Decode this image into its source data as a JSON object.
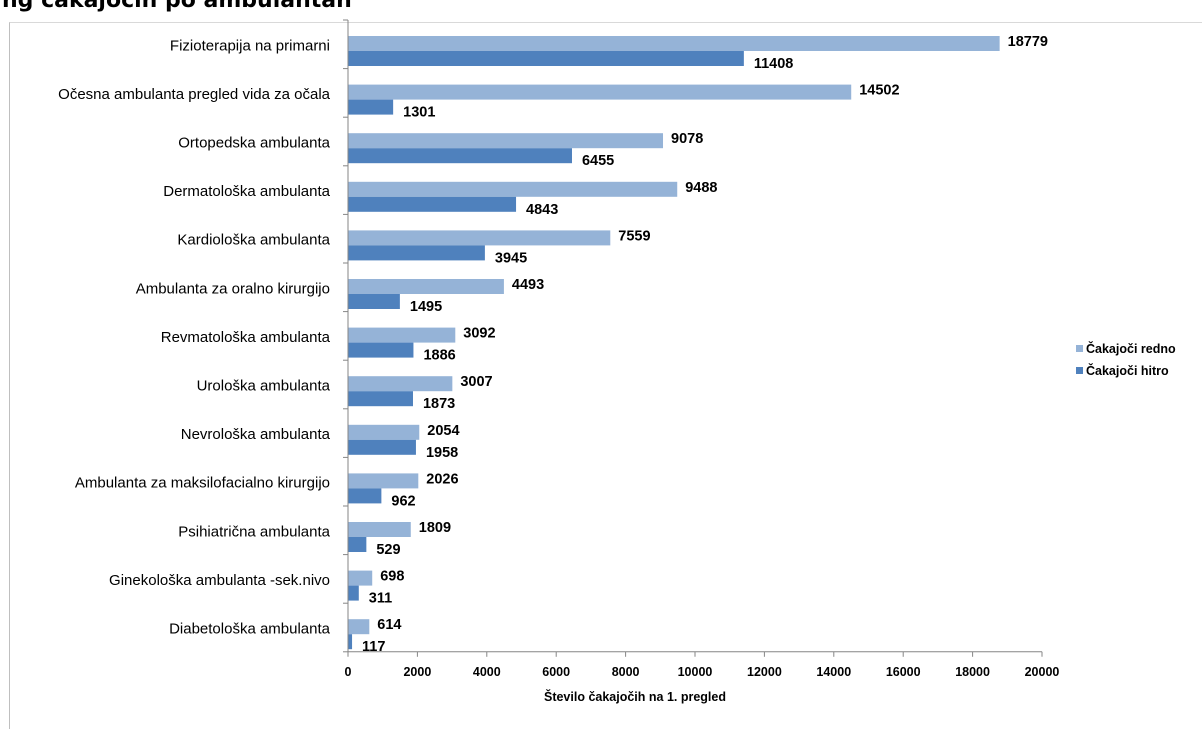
{
  "chart_data": {
    "type": "bar",
    "orientation": "horizontal",
    "title": "",
    "xlabel": "Število čakajočih na 1. pregled",
    "ylabel": "",
    "xlim": [
      0,
      20000
    ],
    "xticks": [
      "0",
      "2000",
      "4000",
      "6000",
      "8000",
      "10000",
      "12000",
      "14000",
      "16000",
      "18000",
      "20000"
    ],
    "grid": false,
    "legend_position": "right",
    "categories": [
      "Fizioterapija na primarni",
      "Očesna ambulanta  pregled vida za očala",
      "Ortopedska ambulanta",
      "Dermatološka ambulanta",
      "Kardiološka ambulanta",
      "Ambulanta za oralno kirurgijo",
      "Revmatološka ambulanta",
      "Urološka ambulanta",
      "Nevrološka ambulanta",
      "Ambulanta za maksilofacialno kirurgijo",
      "Psihiatrična ambulanta",
      "Ginekološka ambulanta -sek.nivo",
      "Diabetološka ambulanta"
    ],
    "series": [
      {
        "name": "Čakajoči redno",
        "color": "#95b3d7",
        "values": [
          18779,
          14502,
          9078,
          9488,
          7559,
          4493,
          3092,
          3007,
          2054,
          2026,
          1809,
          698,
          614
        ]
      },
      {
        "name": "Čakajoči hitro",
        "color": "#4f81bd",
        "values": [
          11408,
          1301,
          6455,
          4843,
          3945,
          1495,
          1886,
          1873,
          1958,
          962,
          529,
          311,
          117
        ]
      }
    ]
  }
}
